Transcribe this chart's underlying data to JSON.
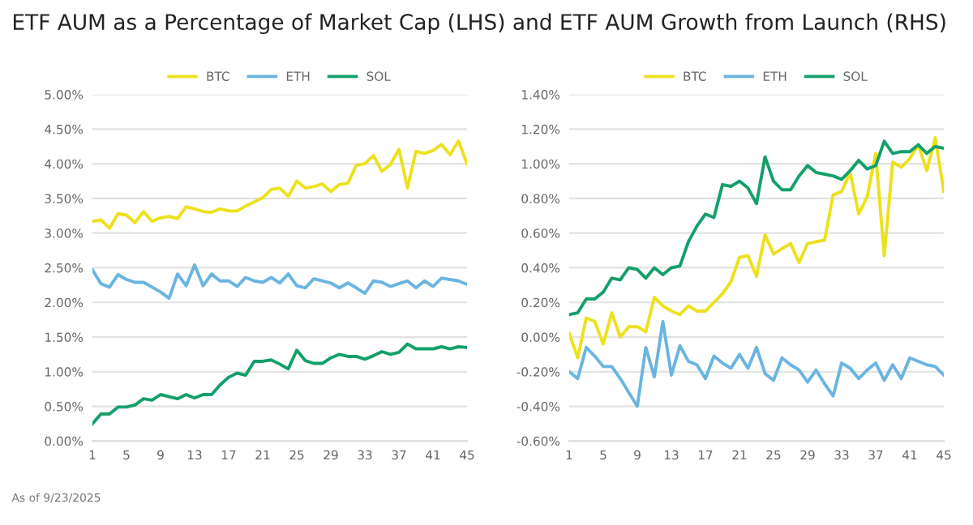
{
  "chart_data": [
    {
      "type": "line",
      "title": "ETF AUM as a Percentage of Market Cap (LHS) and ETF AUM Growth from Launch (RHS)",
      "annotations": [
        "As of 9/23/2025"
      ],
      "x": [
        1,
        2,
        3,
        4,
        5,
        6,
        7,
        8,
        9,
        10,
        11,
        12,
        13,
        14,
        15,
        16,
        17,
        18,
        19,
        20,
        21,
        22,
        23,
        24,
        25,
        26,
        27,
        28,
        29,
        30,
        31,
        32,
        33,
        34,
        35,
        36,
        37,
        38,
        39,
        40,
        41,
        42,
        43,
        44,
        45
      ],
      "xlim": [
        1,
        45
      ],
      "xticks": [
        1,
        5,
        9,
        13,
        17,
        21,
        25,
        29,
        33,
        37,
        41,
        45
      ],
      "ylim": [
        0,
        5
      ],
      "yticks": [
        {
          "value": 0,
          "label": "0.00%"
        },
        {
          "value": 0.5,
          "label": "0.50%"
        },
        {
          "value": 1,
          "label": "1.00%"
        },
        {
          "value": 1.5,
          "label": "1.50%"
        },
        {
          "value": 2,
          "label": "2.00%"
        },
        {
          "value": 2.5,
          "label": "2.50%"
        },
        {
          "value": 3,
          "label": "3.00%"
        },
        {
          "value": 3.5,
          "label": "3.50%"
        },
        {
          "value": 4,
          "label": "4.00%"
        },
        {
          "value": 4.5,
          "label": "4.50%"
        },
        {
          "value": 5,
          "label": "5.00%"
        }
      ],
      "grid": "y",
      "legend": "top",
      "marker": "none",
      "line_style": "solid",
      "series": [
        {
          "name": "BTC",
          "color": "#ece11c",
          "values": [
            3.17,
            3.19,
            3.07,
            3.28,
            3.26,
            3.15,
            3.31,
            3.17,
            3.22,
            3.24,
            3.21,
            3.38,
            3.35,
            3.31,
            3.3,
            3.35,
            3.32,
            3.32,
            3.39,
            3.45,
            3.51,
            3.63,
            3.65,
            3.53,
            3.75,
            3.65,
            3.67,
            3.71,
            3.6,
            3.7,
            3.72,
            3.98,
            4.0,
            4.12,
            3.89,
            3.99,
            4.21,
            3.65,
            4.18,
            4.15,
            4.19,
            4.28,
            4.13,
            4.33,
            4.0
          ]
        },
        {
          "name": "ETH",
          "color": "#6ab4e0",
          "values": [
            2.47,
            2.27,
            2.22,
            2.4,
            2.33,
            2.29,
            2.29,
            2.22,
            2.15,
            2.06,
            2.41,
            2.24,
            2.54,
            2.24,
            2.41,
            2.31,
            2.31,
            2.23,
            2.36,
            2.31,
            2.29,
            2.36,
            2.28,
            2.41,
            2.24,
            2.21,
            2.34,
            2.31,
            2.28,
            2.21,
            2.28,
            2.21,
            2.13,
            2.31,
            2.29,
            2.23,
            2.27,
            2.31,
            2.21,
            2.31,
            2.23,
            2.35,
            2.33,
            2.31,
            2.26
          ]
        },
        {
          "name": "SOL",
          "color": "#13a06a",
          "values": [
            0.25,
            0.39,
            0.39,
            0.49,
            0.49,
            0.52,
            0.61,
            0.59,
            0.67,
            0.64,
            0.61,
            0.67,
            0.62,
            0.67,
            0.67,
            0.81,
            0.92,
            0.98,
            0.95,
            1.15,
            1.15,
            1.17,
            1.11,
            1.04,
            1.31,
            1.16,
            1.12,
            1.12,
            1.2,
            1.25,
            1.22,
            1.22,
            1.18,
            1.23,
            1.29,
            1.25,
            1.28,
            1.4,
            1.33,
            1.33,
            1.33,
            1.36,
            1.33,
            1.36,
            1.35
          ]
        }
      ]
    },
    {
      "type": "line",
      "x": [
        1,
        2,
        3,
        4,
        5,
        6,
        7,
        8,
        9,
        10,
        11,
        12,
        13,
        14,
        15,
        16,
        17,
        18,
        19,
        20,
        21,
        22,
        23,
        24,
        25,
        26,
        27,
        28,
        29,
        30,
        31,
        32,
        33,
        34,
        35,
        36,
        37,
        38,
        39,
        40,
        41,
        42,
        43,
        44,
        45
      ],
      "xlim": [
        1,
        45
      ],
      "xticks": [
        1,
        5,
        9,
        13,
        17,
        21,
        25,
        29,
        33,
        37,
        41,
        45
      ],
      "ylim": [
        -0.6,
        1.4
      ],
      "yticks": [
        {
          "value": -0.6,
          "label": "-0.60%"
        },
        {
          "value": -0.4,
          "label": "-0.40%"
        },
        {
          "value": -0.2,
          "label": "-0.20%"
        },
        {
          "value": 0,
          "label": "0.00%"
        },
        {
          "value": 0.2,
          "label": "0.20%"
        },
        {
          "value": 0.4,
          "label": "0.40%"
        },
        {
          "value": 0.6,
          "label": "0.60%"
        },
        {
          "value": 0.8,
          "label": "0.80%"
        },
        {
          "value": 1.0,
          "label": "1.00%"
        },
        {
          "value": 1.2,
          "label": "1.20%"
        },
        {
          "value": 1.4,
          "label": "1.40%"
        }
      ],
      "grid": "y",
      "legend": "top",
      "marker": "none",
      "line_style": "solid",
      "series": [
        {
          "name": "BTC",
          "color": "#ece11c",
          "values": [
            0.02,
            -0.12,
            0.11,
            0.09,
            -0.04,
            0.14,
            0.0,
            0.06,
            0.06,
            0.03,
            0.23,
            0.18,
            0.15,
            0.13,
            0.18,
            0.15,
            0.15,
            0.2,
            0.25,
            0.32,
            0.46,
            0.47,
            0.35,
            0.59,
            0.48,
            0.51,
            0.54,
            0.43,
            0.54,
            0.55,
            0.56,
            0.82,
            0.84,
            0.95,
            0.71,
            0.81,
            1.06,
            0.47,
            1.01,
            0.98,
            1.03,
            1.11,
            0.96,
            1.15,
            0.84
          ]
        },
        {
          "name": "ETH",
          "color": "#6ab4e0",
          "values": [
            -0.2,
            -0.24,
            -0.06,
            -0.11,
            -0.17,
            -0.17,
            -0.24,
            -0.32,
            -0.4,
            -0.06,
            -0.23,
            0.09,
            -0.22,
            -0.05,
            -0.14,
            -0.16,
            -0.24,
            -0.11,
            -0.15,
            -0.18,
            -0.1,
            -0.18,
            -0.06,
            -0.21,
            -0.25,
            -0.12,
            -0.16,
            -0.19,
            -0.26,
            -0.19,
            -0.27,
            -0.34,
            -0.15,
            -0.18,
            -0.24,
            -0.19,
            -0.15,
            -0.25,
            -0.16,
            -0.24,
            -0.12,
            -0.14,
            -0.16,
            -0.17,
            -0.22
          ]
        },
        {
          "name": "SOL",
          "color": "#13a06a",
          "values": [
            0.13,
            0.14,
            0.22,
            0.22,
            0.26,
            0.34,
            0.33,
            0.4,
            0.39,
            0.34,
            0.4,
            0.36,
            0.4,
            0.41,
            0.55,
            0.64,
            0.71,
            0.69,
            0.88,
            0.87,
            0.9,
            0.86,
            0.77,
            1.04,
            0.9,
            0.85,
            0.85,
            0.93,
            0.99,
            0.95,
            0.94,
            0.93,
            0.91,
            0.96,
            1.02,
            0.97,
            0.99,
            1.13,
            1.06,
            1.07,
            1.07,
            1.11,
            1.06,
            1.1,
            1.09
          ]
        }
      ]
    }
  ]
}
